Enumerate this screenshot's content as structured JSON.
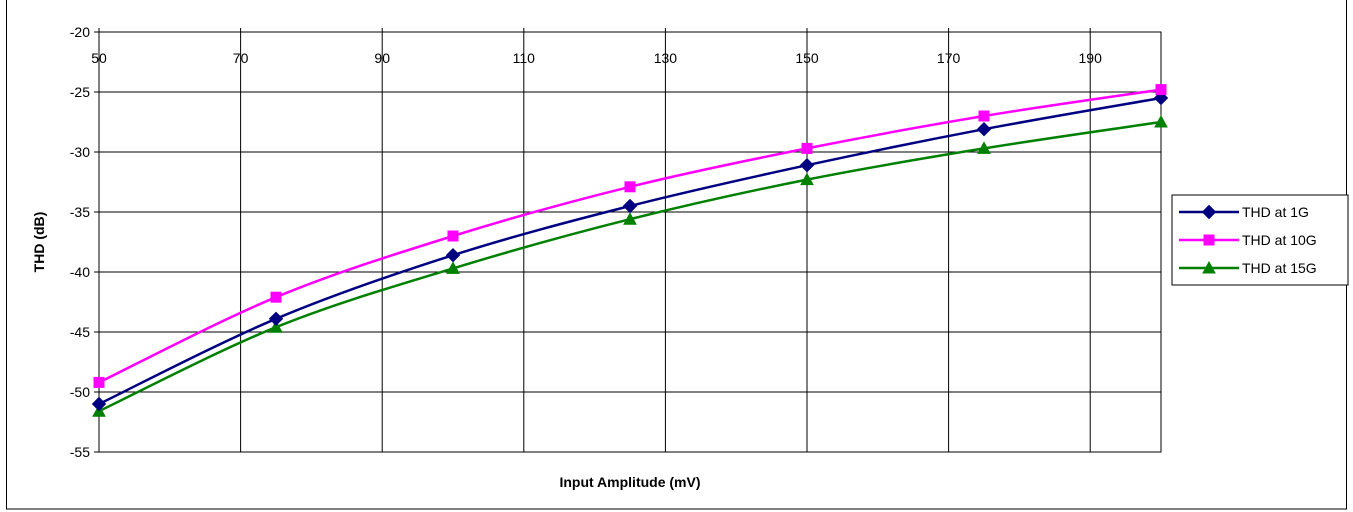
{
  "chart_data": {
    "type": "line",
    "xlabel": "Input Amplitude (mV)",
    "ylabel": "THD (dB)",
    "xlim": [
      50,
      200
    ],
    "ylim": [
      -55,
      -20
    ],
    "x_ticks": [
      "50",
      "70",
      "90",
      "110",
      "130",
      "150",
      "170",
      "190"
    ],
    "y_ticks": [
      "-20",
      "-25",
      "-30",
      "-35",
      "-40",
      "-45",
      "-50",
      "-55"
    ],
    "x_axis_position": "top",
    "grid": true,
    "legend_position": "right",
    "series": [
      {
        "name": "THD at 1G",
        "color": "#000080",
        "marker": "diamond",
        "x": [
          50,
          75,
          100,
          125,
          150,
          175,
          200
        ],
        "values": [
          -51.0,
          -43.9,
          -38.6,
          -34.5,
          -31.1,
          -28.1,
          -25.5
        ]
      },
      {
        "name": "THD at 10G",
        "color": "#ff00ff",
        "marker": "square",
        "x": [
          50,
          75,
          100,
          125,
          150,
          175,
          200
        ],
        "values": [
          -49.2,
          -42.1,
          -37.0,
          -32.9,
          -29.7,
          -27.0,
          -24.8
        ]
      },
      {
        "name": "THD at 15G",
        "color": "#008000",
        "marker": "triangle",
        "x": [
          50,
          75,
          100,
          125,
          150,
          175,
          200
        ],
        "values": [
          -51.6,
          -44.6,
          -39.7,
          -35.6,
          -32.3,
          -29.7,
          -27.5
        ]
      }
    ]
  }
}
